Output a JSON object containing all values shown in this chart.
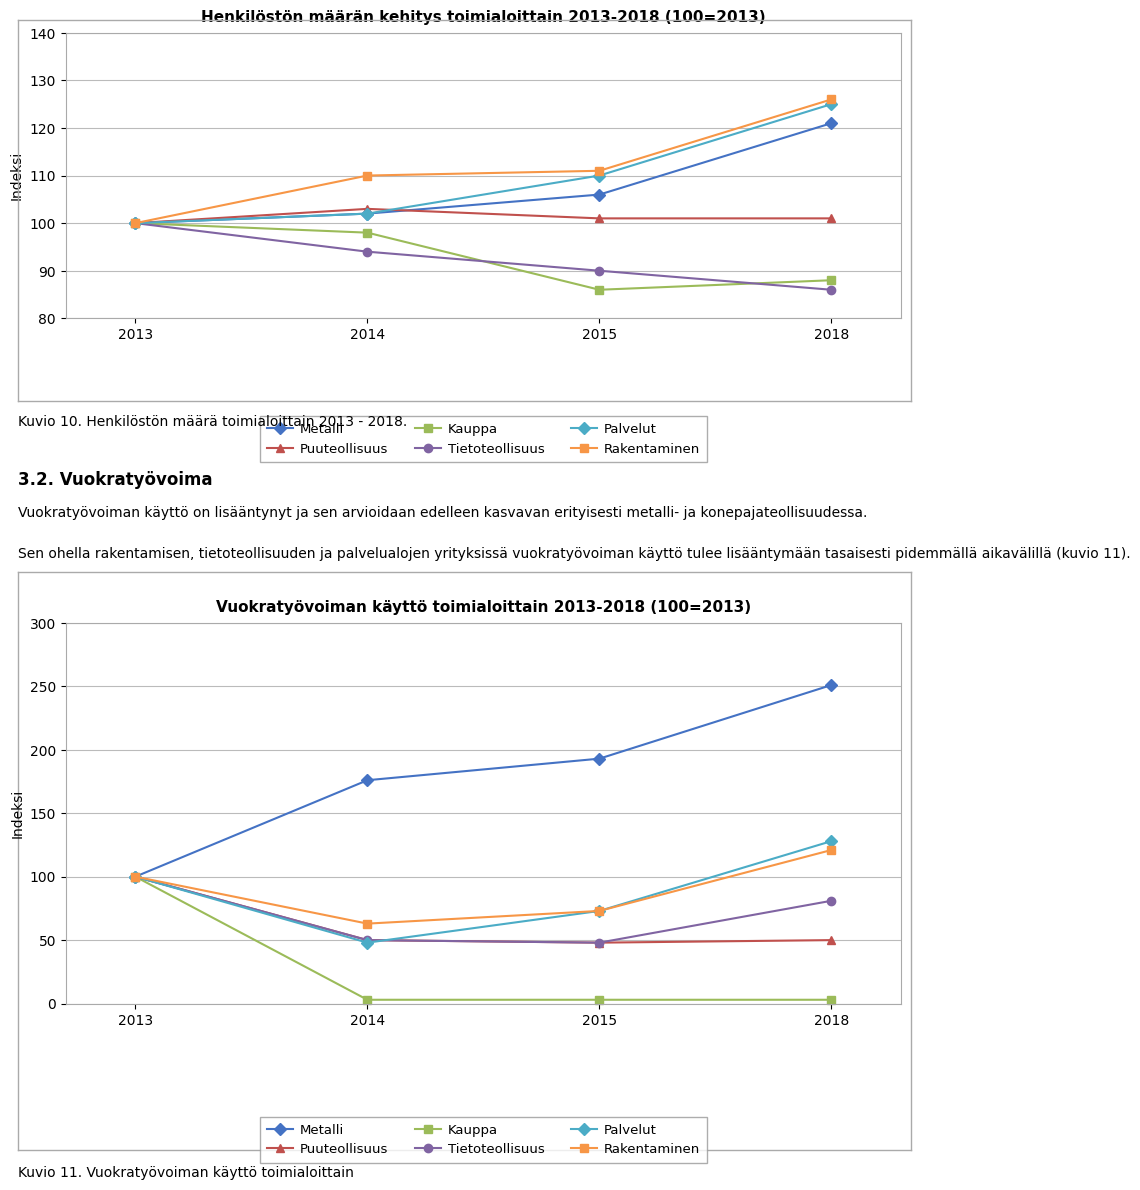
{
  "chart1": {
    "title": "Henkilöstön määrän kehitys toimialoittain 2013-2018 (100=2013)",
    "years": [
      2013,
      2014,
      2015,
      2018
    ],
    "ylabel": "Indeksi",
    "ylim": [
      80,
      140
    ],
    "yticks": [
      80,
      90,
      100,
      110,
      120,
      130,
      140
    ],
    "series": {
      "Metalli": {
        "values": [
          100,
          102,
          106,
          121
        ],
        "color": "#4472C4",
        "marker": "D"
      },
      "Puuteollisuus": {
        "values": [
          100,
          103,
          101,
          101
        ],
        "color": "#C0504D",
        "marker": "^"
      },
      "Kauppa": {
        "values": [
          100,
          98,
          86,
          88
        ],
        "color": "#9BBB59",
        "marker": "s"
      },
      "Tietoteollisuus": {
        "values": [
          100,
          94,
          90,
          86
        ],
        "color": "#8064A2",
        "marker": "o"
      },
      "Palvelut": {
        "values": [
          100,
          102,
          110,
          125
        ],
        "color": "#4BACC6",
        "marker": "D"
      },
      "Rakentaminen": {
        "values": [
          100,
          110,
          111,
          126
        ],
        "color": "#F79646",
        "marker": "s"
      }
    }
  },
  "chart2": {
    "title": "Vuokratyövoiman käyttö toimialoittain 2013-2018 (100=2013)",
    "years": [
      2013,
      2014,
      2015,
      2018
    ],
    "ylabel": "Indeksi",
    "ylim": [
      0,
      300
    ],
    "yticks": [
      0,
      50,
      100,
      150,
      200,
      250,
      300
    ],
    "series": {
      "Metalli": {
        "values": [
          100,
          176,
          193,
          251
        ],
        "color": "#4472C4",
        "marker": "D"
      },
      "Puuteollisuus": {
        "values": [
          100,
          50,
          48,
          50
        ],
        "color": "#C0504D",
        "marker": "^"
      },
      "Kauppa": {
        "values": [
          100,
          3,
          3,
          3
        ],
        "color": "#9BBB59",
        "marker": "s"
      },
      "Tietoteollisuus": {
        "values": [
          100,
          50,
          48,
          81
        ],
        "color": "#8064A2",
        "marker": "o"
      },
      "Palvelut": {
        "values": [
          100,
          48,
          73,
          128
        ],
        "color": "#4BACC6",
        "marker": "D"
      },
      "Rakentaminen": {
        "values": [
          100,
          63,
          73,
          121
        ],
        "color": "#F79646",
        "marker": "s"
      }
    }
  },
  "caption1": "Kuvio 10. Henkilöstön määrä toimialoittain 2013 - 2018.",
  "caption2": "Kuvio 11. Vuokratyövoiman käyttö toimialoittain",
  "section_title": "3.2. Vuokratyövoima",
  "section_text1": "Vuokratyövoiman käyttö on lisääntynyt ja sen arvioidaan edelleen kasvavan erityisesti metalli- ja konepajateollisuudessa.",
  "section_text2": "Sen ohella rakentamisen, tietoteollisuuden ja palvelualojen yrityksissä vuokratyövoiman käyttö tulee lisääntymään tasaisesti pidemmällä aikavälillä (kuvio 11).",
  "legend_order": [
    "Metalli",
    "Puuteollisuus",
    "Kauppa",
    "Tietoteollisuus",
    "Palvelut",
    "Rakentaminen"
  ],
  "background_color": "#FFFFFF",
  "chart_bg": "#FFFFFF"
}
